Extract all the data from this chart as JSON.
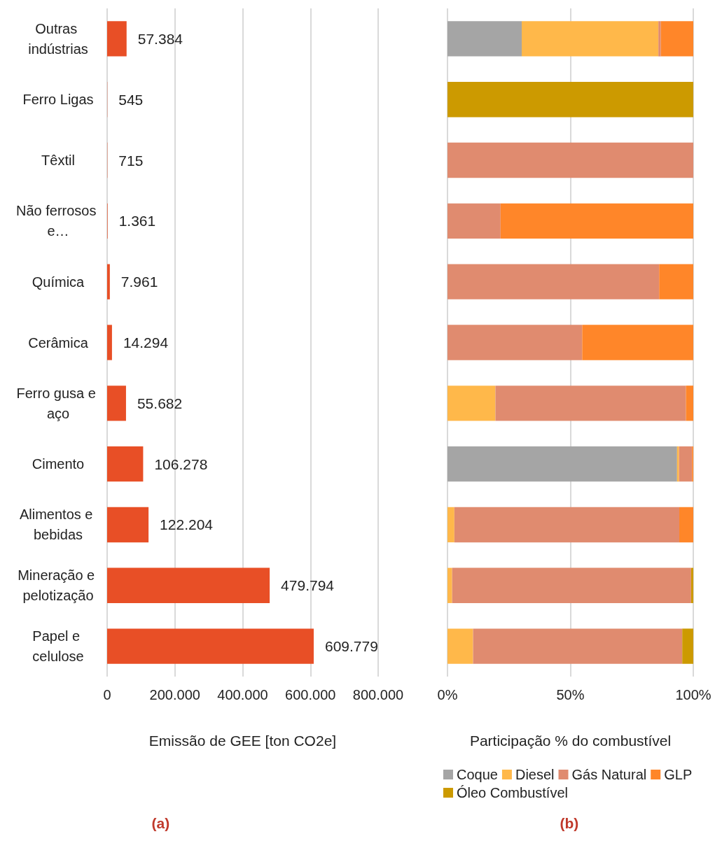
{
  "chart_data": [
    {
      "type": "bar",
      "orientation": "horizontal",
      "categories": [
        "Outras indústrias",
        "Ferro Ligas",
        "Têxtil",
        "Não ferrosos e…",
        "Química",
        "Cerâmica",
        "Ferro gusa e aço",
        "Cimento",
        "Alimentos e bebidas",
        "Mineração e pelotização",
        "Papel e celulose"
      ],
      "values": [
        57384,
        545,
        715,
        1361,
        7961,
        14294,
        55682,
        106278,
        122204,
        479794,
        609779
      ],
      "value_labels": [
        "57.384",
        "545",
        "715",
        "1.361",
        "7.961",
        "14.294",
        "55.682",
        "106.278",
        "122.204",
        "479.794",
        "609.779"
      ],
      "color": "#e84f26",
      "xlabel": "Emissão de GEE [ton CO2e]",
      "xlim": [
        0,
        800000
      ],
      "xticks": [
        0,
        {
          "value": 200000,
          "label": "200.000"
        },
        {
          "value": 400000,
          "label": "400.000"
        },
        {
          "value": 600000,
          "label": "600.000"
        },
        {
          "value": 800000,
          "label": "800.000"
        }
      ],
      "grid": "x",
      "legend": false,
      "annotations": [
        "(a)"
      ]
    },
    {
      "type": "bar",
      "orientation": "horizontal",
      "stacked": true,
      "categories": [
        "Outras indústrias",
        "Ferro Ligas",
        "Têxtil",
        "Não ferrosos e…",
        "Química",
        "Cerâmica",
        "Ferro gusa e aço",
        "Cimento",
        "Alimentos e bebidas",
        "Mineração e pelotização",
        "Papel e celulose"
      ],
      "series": [
        {
          "name": "Coque",
          "color": "#a5a5a5",
          "values": [
            30.2,
            0,
            0,
            0,
            0,
            0,
            0,
            93.4,
            0,
            0,
            0
          ]
        },
        {
          "name": "Diesel",
          "color": "#ffb84a",
          "values": [
            55.6,
            0,
            0,
            0,
            0,
            0,
            19.5,
            0.8,
            2.8,
            1.9,
            10.4
          ]
        },
        {
          "name": "Gás Natural",
          "color": "#e08b6f",
          "values": [
            1.0,
            0,
            100,
            21.6,
            86.1,
            54.8,
            77.5,
            5.3,
            91.5,
            97.2,
            85.1
          ]
        },
        {
          "name": "GLP",
          "color": "#ff8629",
          "values": [
            13.2,
            0,
            0,
            78.4,
            13.9,
            45.2,
            3.0,
            0.5,
            5.7,
            0,
            0
          ]
        },
        {
          "name": "Óleo Combustível",
          "color": "#cc9a00",
          "values": [
            0,
            100,
            0,
            0,
            0,
            0,
            0,
            0,
            0,
            0.9,
            4.5
          ]
        }
      ],
      "xlabel": "Participação % do combustível",
      "xlim": [
        0,
        100
      ],
      "xticks": [
        {
          "value": 0,
          "label": "0%"
        },
        {
          "value": 50,
          "label": "50%"
        },
        {
          "value": 100,
          "label": "100%"
        }
      ],
      "tick_labels": "x",
      "grid": "x",
      "legend": "bottom",
      "annotations": [
        "(b)"
      ]
    }
  ]
}
